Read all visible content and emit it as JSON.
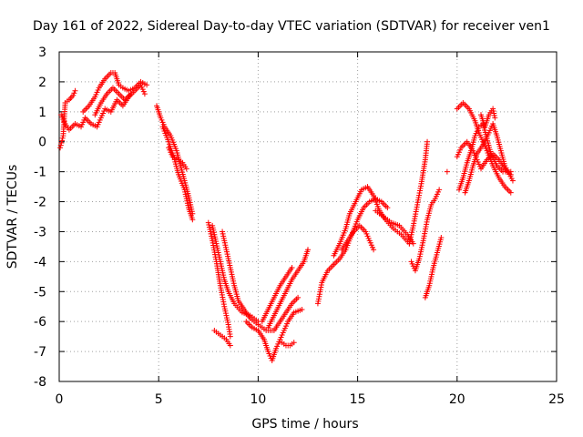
{
  "chart_data": {
    "type": "scatter",
    "title": "Day 161 of 2022, Sidereal Day-to-day VTEC variation (SDTVAR) for receiver ven1",
    "xlabel": "GPS time / hours",
    "ylabel": "SDTVAR / TECUs",
    "xlim": [
      0,
      25
    ],
    "ylim": [
      -8,
      3
    ],
    "xticks": [
      "0",
      "5",
      "10",
      "15",
      "20",
      "25"
    ],
    "yticks": [
      "3",
      "2",
      "1",
      "0",
      "-1",
      "-2",
      "-3",
      "-4",
      "-5",
      "-6",
      "-7",
      "-8"
    ],
    "grid": true,
    "marker": "+",
    "color": "#ff0000",
    "series": [
      {
        "segments": [
          [
            [
              0.05,
              -0.2
            ],
            [
              0.2,
              0.2
            ],
            [
              0.3,
              1.3
            ],
            [
              0.5,
              1.4
            ],
            [
              0.7,
              1.55
            ],
            [
              0.8,
              1.7
            ]
          ],
          [
            [
              0.1,
              0.9
            ],
            [
              0.3,
              0.6
            ],
            [
              0.5,
              0.4
            ],
            [
              0.8,
              0.6
            ],
            [
              1.1,
              0.5
            ],
            [
              1.3,
              0.8
            ],
            [
              1.6,
              0.6
            ],
            [
              1.9,
              0.5
            ],
            [
              2.1,
              0.8
            ],
            [
              2.3,
              1.1
            ],
            [
              2.6,
              1.0
            ],
            [
              2.9,
              1.4
            ],
            [
              3.2,
              1.2
            ],
            [
              3.5,
              1.5
            ],
            [
              3.8,
              1.7
            ],
            [
              4.1,
              1.9
            ],
            [
              4.3,
              1.6
            ]
          ],
          [
            [
              1.2,
              1.0
            ],
            [
              1.5,
              1.2
            ],
            [
              1.8,
              1.5
            ],
            [
              2.0,
              1.8
            ],
            [
              2.3,
              2.1
            ],
            [
              2.6,
              2.3
            ],
            [
              2.8,
              2.3
            ],
            [
              3.0,
              1.9
            ],
            [
              3.2,
              1.8
            ],
            [
              3.5,
              1.7
            ],
            [
              3.8,
              1.8
            ],
            [
              4.1,
              2.0
            ],
            [
              4.4,
              1.9
            ]
          ],
          [
            [
              1.8,
              0.9
            ],
            [
              2.1,
              1.3
            ],
            [
              2.4,
              1.6
            ],
            [
              2.7,
              1.8
            ],
            [
              3.0,
              1.6
            ],
            [
              3.3,
              1.4
            ],
            [
              3.6,
              1.6
            ]
          ],
          [
            [
              4.9,
              1.2
            ],
            [
              5.1,
              0.8
            ],
            [
              5.3,
              0.5
            ],
            [
              5.6,
              0.2
            ],
            [
              5.9,
              -0.3
            ],
            [
              6.1,
              -0.8
            ],
            [
              6.3,
              -1.3
            ],
            [
              6.5,
              -1.8
            ],
            [
              6.7,
              -2.4
            ]
          ],
          [
            [
              5.2,
              0.5
            ],
            [
              5.5,
              0.0
            ],
            [
              5.8,
              -0.6
            ],
            [
              6.0,
              -1.1
            ],
            [
              6.3,
              -1.6
            ],
            [
              6.5,
              -2.2
            ],
            [
              6.7,
              -2.6
            ]
          ],
          [
            [
              5.5,
              -0.2
            ],
            [
              5.7,
              -0.5
            ],
            [
              6.0,
              -0.6
            ],
            [
              6.2,
              -0.7
            ],
            [
              6.4,
              -0.9
            ]
          ],
          [
            [
              7.5,
              -2.7
            ],
            [
              7.7,
              -3.3
            ],
            [
              7.9,
              -4.0
            ],
            [
              8.1,
              -4.8
            ],
            [
              8.3,
              -5.5
            ],
            [
              8.5,
              -6.1
            ],
            [
              8.6,
              -6.5
            ]
          ],
          [
            [
              7.7,
              -2.8
            ],
            [
              7.9,
              -3.4
            ],
            [
              8.1,
              -4.0
            ],
            [
              8.3,
              -4.6
            ],
            [
              8.5,
              -5.0
            ],
            [
              8.8,
              -5.4
            ],
            [
              9.2,
              -5.7
            ],
            [
              9.6,
              -5.8
            ],
            [
              10.0,
              -6.0
            ]
          ],
          [
            [
              8.2,
              -3.0
            ],
            [
              8.4,
              -3.6
            ],
            [
              8.6,
              -4.2
            ],
            [
              8.8,
              -4.8
            ],
            [
              9.0,
              -5.3
            ],
            [
              9.3,
              -5.6
            ],
            [
              9.6,
              -5.9
            ],
            [
              10.0,
              -6.1
            ],
            [
              10.4,
              -6.3
            ],
            [
              10.7,
              -6.3
            ]
          ],
          [
            [
              7.8,
              -6.3
            ],
            [
              8.0,
              -6.4
            ],
            [
              8.2,
              -6.5
            ],
            [
              8.4,
              -6.6
            ],
            [
              8.6,
              -6.8
            ]
          ],
          [
            [
              9.4,
              -6.0
            ],
            [
              9.7,
              -6.2
            ],
            [
              10.0,
              -6.3
            ],
            [
              10.3,
              -6.6
            ],
            [
              10.5,
              -7.0
            ],
            [
              10.7,
              -7.3
            ],
            [
              10.9,
              -6.9
            ],
            [
              11.1,
              -6.6
            ],
            [
              11.3,
              -6.3
            ],
            [
              11.5,
              -6.0
            ],
            [
              11.8,
              -5.7
            ],
            [
              12.2,
              -5.6
            ]
          ],
          [
            [
              10.5,
              -6.2
            ],
            [
              10.8,
              -5.8
            ],
            [
              11.1,
              -5.4
            ],
            [
              11.4,
              -5.0
            ],
            [
              11.7,
              -4.6
            ],
            [
              12.0,
              -4.3
            ],
            [
              12.3,
              -4.0
            ],
            [
              12.5,
              -3.6
            ]
          ],
          [
            [
              10.2,
              -6.0
            ],
            [
              10.5,
              -5.6
            ],
            [
              10.8,
              -5.2
            ],
            [
              11.1,
              -4.8
            ],
            [
              11.4,
              -4.5
            ],
            [
              11.7,
              -4.2
            ]
          ],
          [
            [
              10.8,
              -6.3
            ],
            [
              11.1,
              -6.0
            ],
            [
              11.4,
              -5.7
            ],
            [
              11.7,
              -5.4
            ],
            [
              12.0,
              -5.2
            ]
          ],
          [
            [
              11.2,
              -6.7
            ],
            [
              11.4,
              -6.8
            ],
            [
              11.6,
              -6.8
            ],
            [
              11.8,
              -6.7
            ]
          ],
          [
            [
              13.0,
              -5.4
            ],
            [
              13.2,
              -4.7
            ],
            [
              13.5,
              -4.3
            ],
            [
              13.8,
              -4.1
            ],
            [
              14.1,
              -3.9
            ],
            [
              14.4,
              -3.6
            ],
            [
              14.7,
              -3.1
            ],
            [
              15.0,
              -2.6
            ],
            [
              15.3,
              -2.2
            ],
            [
              15.6,
              -2.0
            ],
            [
              15.9,
              -1.9
            ],
            [
              16.2,
              -2.0
            ],
            [
              16.5,
              -2.2
            ]
          ],
          [
            [
              13.8,
              -3.8
            ],
            [
              14.1,
              -3.4
            ],
            [
              14.4,
              -2.9
            ],
            [
              14.6,
              -2.4
            ],
            [
              14.9,
              -2.0
            ],
            [
              15.2,
              -1.6
            ],
            [
              15.5,
              -1.5
            ],
            [
              15.8,
              -1.8
            ],
            [
              16.1,
              -2.3
            ],
            [
              16.4,
              -2.6
            ],
            [
              16.8,
              -2.9
            ],
            [
              17.2,
              -3.1
            ],
            [
              17.6,
              -3.4
            ]
          ],
          [
            [
              14.2,
              -3.6
            ],
            [
              14.5,
              -3.3
            ],
            [
              14.8,
              -3.0
            ],
            [
              15.1,
              -2.8
            ],
            [
              15.4,
              -3.0
            ],
            [
              15.6,
              -3.3
            ],
            [
              15.8,
              -3.6
            ]
          ],
          [
            [
              15.9,
              -2.3
            ],
            [
              16.3,
              -2.5
            ],
            [
              16.7,
              -2.7
            ],
            [
              17.1,
              -2.8
            ],
            [
              17.5,
              -3.1
            ],
            [
              17.8,
              -3.4
            ]
          ],
          [
            [
              17.6,
              -3.4
            ],
            [
              17.8,
              -2.8
            ],
            [
              18.0,
              -2.1
            ],
            [
              18.2,
              -1.4
            ],
            [
              18.4,
              -0.6
            ],
            [
              18.5,
              0.0
            ]
          ],
          [
            [
              17.7,
              -4.0
            ],
            [
              17.9,
              -4.3
            ],
            [
              18.1,
              -3.9
            ],
            [
              18.3,
              -3.3
            ],
            [
              18.5,
              -2.6
            ],
            [
              18.7,
              -2.1
            ],
            [
              18.9,
              -1.9
            ],
            [
              19.1,
              -1.6
            ]
          ],
          [
            [
              18.4,
              -5.2
            ],
            [
              18.6,
              -4.8
            ],
            [
              18.8,
              -4.2
            ],
            [
              19.0,
              -3.7
            ],
            [
              19.2,
              -3.2
            ]
          ],
          [
            [
              19.5,
              -1.0
            ]
          ],
          [
            [
              20.0,
              1.1
            ],
            [
              20.3,
              1.3
            ],
            [
              20.6,
              1.1
            ],
            [
              20.9,
              0.7
            ],
            [
              21.1,
              0.3
            ],
            [
              21.3,
              0.0
            ],
            [
              21.5,
              -0.3
            ],
            [
              21.8,
              -0.8
            ],
            [
              22.1,
              -1.2
            ],
            [
              22.4,
              -1.5
            ],
            [
              22.7,
              -1.7
            ]
          ],
          [
            [
              20.1,
              -1.6
            ],
            [
              20.3,
              -1.2
            ],
            [
              20.5,
              -0.7
            ],
            [
              20.7,
              -0.3
            ],
            [
              20.9,
              0.2
            ],
            [
              21.1,
              0.5
            ],
            [
              21.3,
              0.6
            ],
            [
              21.5,
              0.1
            ],
            [
              21.7,
              -0.4
            ],
            [
              22.0,
              -0.8
            ],
            [
              22.3,
              -1.0
            ],
            [
              22.7,
              -1.0
            ]
          ],
          [
            [
              20.0,
              -0.5
            ],
            [
              20.2,
              -0.2
            ],
            [
              20.5,
              0.0
            ],
            [
              20.8,
              -0.3
            ],
            [
              21.0,
              -0.6
            ],
            [
              21.2,
              -0.9
            ],
            [
              21.5,
              -0.6
            ],
            [
              21.8,
              -0.4
            ],
            [
              22.1,
              -0.6
            ],
            [
              22.4,
              -0.9
            ],
            [
              22.7,
              -1.1
            ]
          ],
          [
            [
              20.4,
              -1.7
            ],
            [
              20.6,
              -1.3
            ],
            [
              20.8,
              -0.8
            ],
            [
              21.0,
              -0.4
            ],
            [
              21.3,
              -0.1
            ],
            [
              21.6,
              0.3
            ],
            [
              21.8,
              0.6
            ],
            [
              22.0,
              0.2
            ],
            [
              22.2,
              -0.3
            ],
            [
              22.4,
              -0.8
            ],
            [
              22.8,
              -1.3
            ]
          ],
          [
            [
              21.2,
              0.9
            ],
            [
              21.4,
              0.5
            ],
            [
              21.6,
              0.9
            ],
            [
              21.8,
              1.1
            ],
            [
              21.9,
              0.8
            ]
          ]
        ]
      }
    ]
  }
}
